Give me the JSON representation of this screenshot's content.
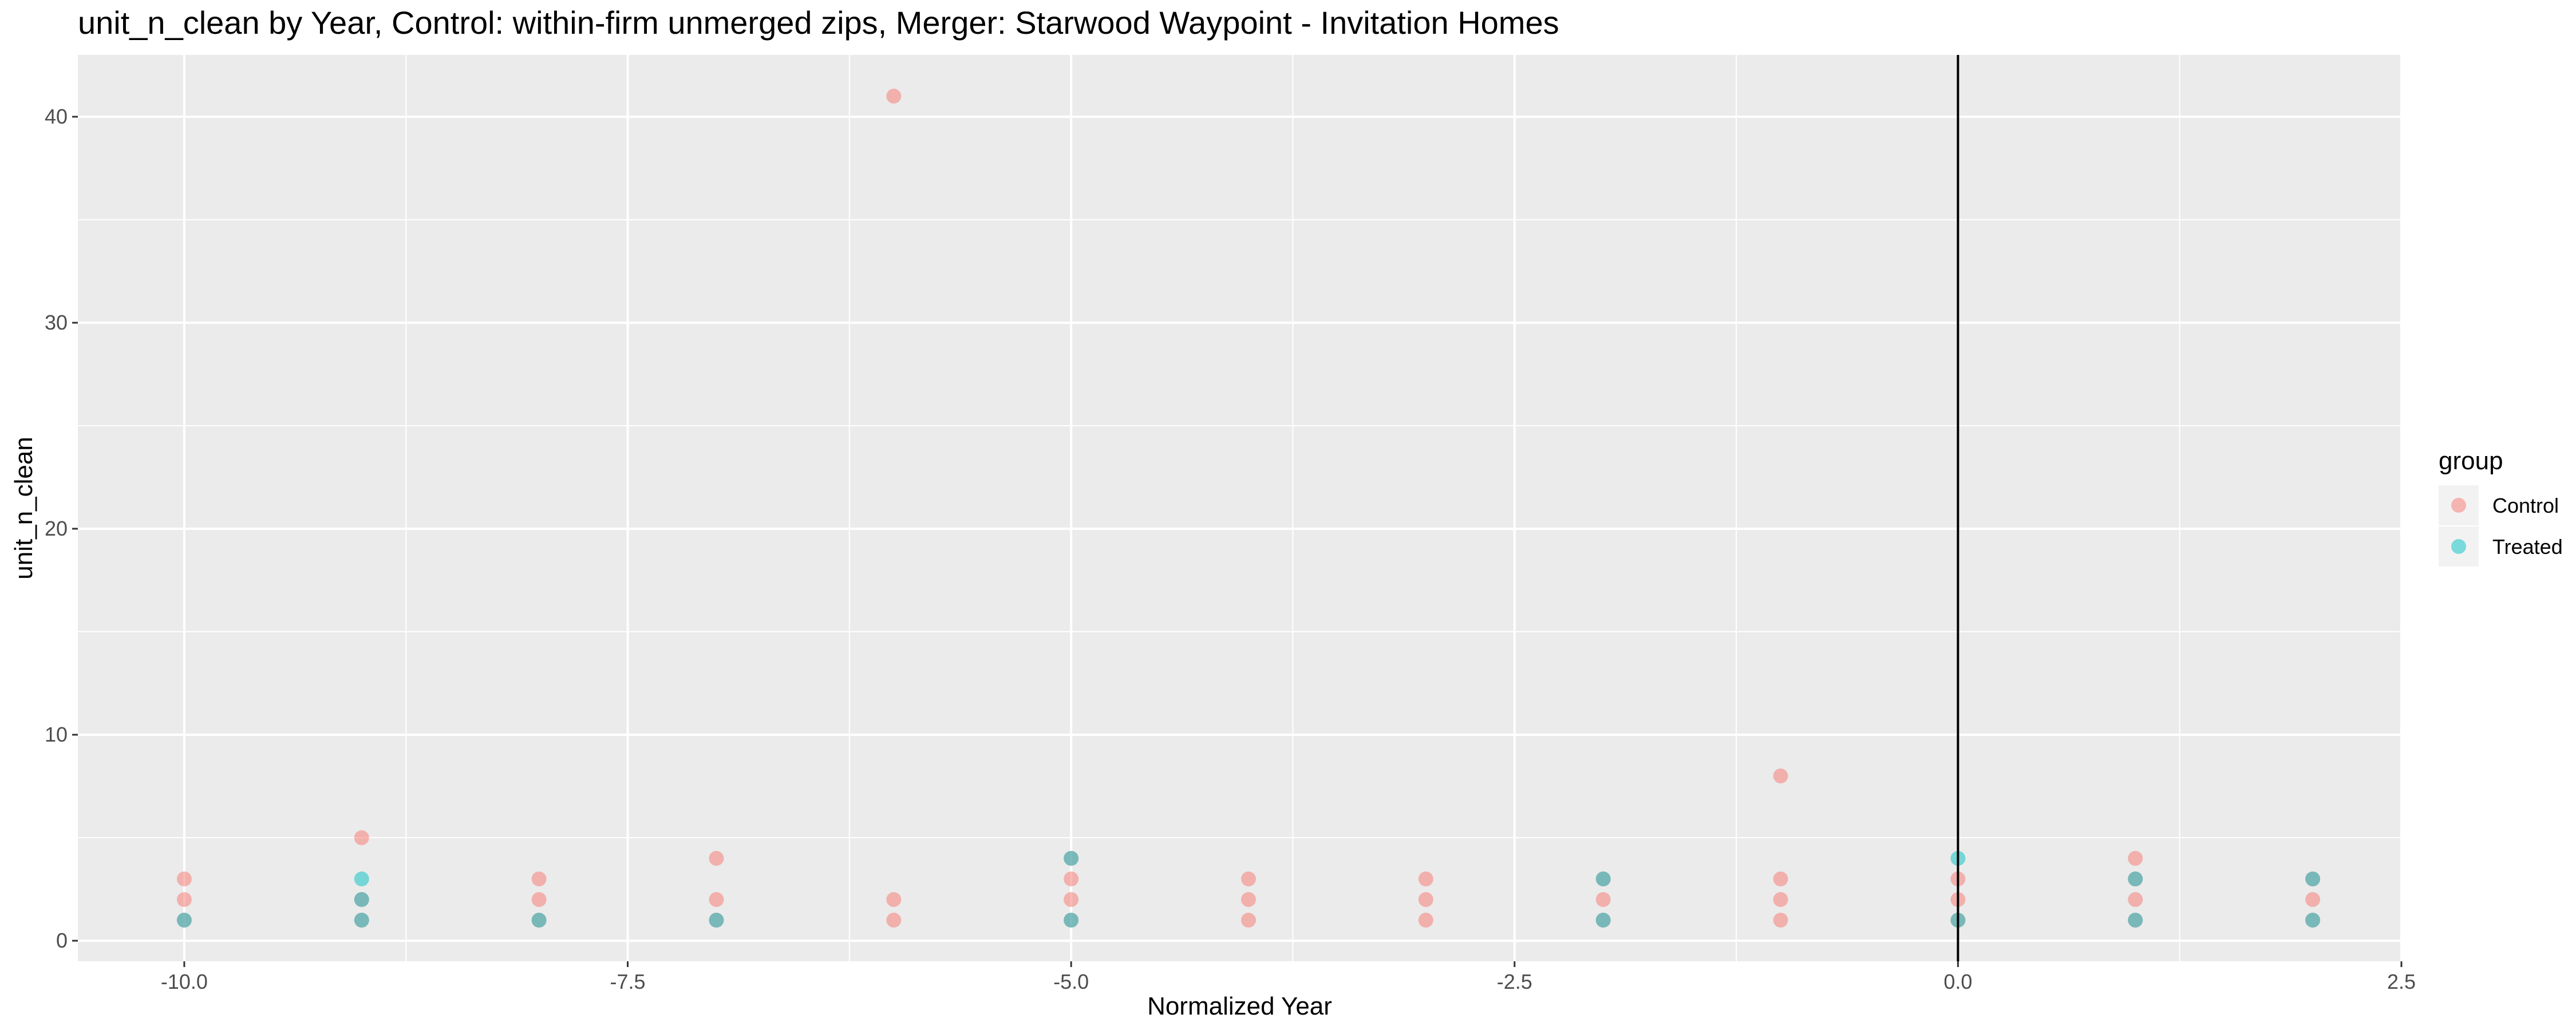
{
  "chart_data": {
    "type": "scatter",
    "title": "unit_n_clean by Year, Control: within-firm unmerged zips, Merger: Starwood Waypoint - Invitation Homes",
    "xlabel": "Normalized Year",
    "ylabel": "unit_n_clean",
    "xlim": [
      -10.6,
      2.5
    ],
    "ylim": [
      -1,
      43
    ],
    "x_ticks": [
      -10.0,
      -7.5,
      -5.0,
      -2.5,
      0.0,
      2.5
    ],
    "x_tick_labels": [
      "-10.0",
      "-7.5",
      "-5.0",
      "-2.5",
      "0.0",
      "2.5"
    ],
    "y_ticks": [
      0,
      10,
      20,
      30,
      40
    ],
    "y_tick_labels": [
      "0",
      "10",
      "20",
      "30",
      "40"
    ],
    "grid": true,
    "vertical_reference_line": {
      "x": 0,
      "color": "#000000"
    },
    "legend": {
      "title": "group",
      "position": "right"
    },
    "series": [
      {
        "name": "Control",
        "color": "#F8766D",
        "points": [
          [
            -10,
            1
          ],
          [
            -10,
            2
          ],
          [
            -10,
            3
          ],
          [
            -9,
            1
          ],
          [
            -9,
            2
          ],
          [
            -9,
            5
          ],
          [
            -8,
            1
          ],
          [
            -8,
            2
          ],
          [
            -8,
            3
          ],
          [
            -7,
            1
          ],
          [
            -7,
            2
          ],
          [
            -7,
            4
          ],
          [
            -6,
            1
          ],
          [
            -6,
            2
          ],
          [
            -6,
            41
          ],
          [
            -5,
            1
          ],
          [
            -5,
            2
          ],
          [
            -5,
            3
          ],
          [
            -5,
            4
          ],
          [
            -4,
            1
          ],
          [
            -4,
            2
          ],
          [
            -4,
            3
          ],
          [
            -3,
            1
          ],
          [
            -3,
            2
          ],
          [
            -3,
            3
          ],
          [
            -2,
            1
          ],
          [
            -2,
            2
          ],
          [
            -2,
            3
          ],
          [
            -1,
            1
          ],
          [
            -1,
            2
          ],
          [
            -1,
            3
          ],
          [
            -1,
            8
          ],
          [
            0,
            1
          ],
          [
            0,
            2
          ],
          [
            0,
            3
          ],
          [
            1,
            1
          ],
          [
            1,
            2
          ],
          [
            1,
            3
          ],
          [
            1,
            4
          ],
          [
            2,
            1
          ],
          [
            2,
            2
          ],
          [
            2,
            3
          ]
        ]
      },
      {
        "name": "Treated",
        "color": "#00BFC4",
        "points": [
          [
            -10,
            1
          ],
          [
            -9,
            1
          ],
          [
            -9,
            2
          ],
          [
            -9,
            3
          ],
          [
            -8,
            1
          ],
          [
            -7,
            1
          ],
          [
            -5,
            1
          ],
          [
            -5,
            4
          ],
          [
            -2,
            1
          ],
          [
            -2,
            3
          ],
          [
            0,
            1
          ],
          [
            0,
            4
          ],
          [
            1,
            1
          ],
          [
            1,
            3
          ],
          [
            2,
            1
          ],
          [
            2,
            3
          ]
        ]
      }
    ]
  }
}
